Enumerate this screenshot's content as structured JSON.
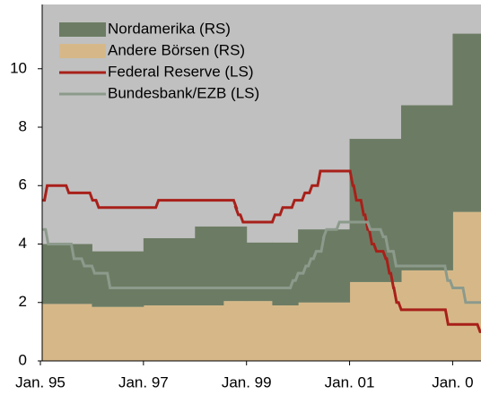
{
  "chart_data": {
    "type": "step_area_line",
    "xlim": [
      1995,
      2003.55
    ],
    "ylim": [
      0,
      12.2
    ],
    "yticks": [
      0,
      2,
      4,
      6,
      8,
      10
    ],
    "xticks": [
      {
        "value": 1995,
        "label": "Jan. 95"
      },
      {
        "value": 1997,
        "label": "Jan. 97"
      },
      {
        "value": 1999,
        "label": "Jan. 99"
      },
      {
        "value": 2001,
        "label": "Jan. 01"
      },
      {
        "value": 2003,
        "label": "Jan. 0"
      }
    ],
    "legend": "top-left",
    "areas": [
      {
        "name": "Andere Börsen (RS)",
        "color": "#d6b888",
        "x": [
          1995,
          1996,
          1997,
          1998,
          1998.55,
          1999,
          1999.5,
          2000,
          2001,
          2002,
          2003
        ],
        "values": [
          1.95,
          1.85,
          1.9,
          1.9,
          2.05,
          2.05,
          1.9,
          2.0,
          2.7,
          3.1,
          5.1
        ]
      },
      {
        "name": "Nordamerika (RS)",
        "color": "#6c7c64",
        "x": [
          1995,
          1996,
          1997,
          1998,
          1998.55,
          1999,
          1999.5,
          2000,
          2001,
          2002,
          2003
        ],
        "values": [
          2.05,
          1.9,
          2.3,
          2.7,
          2.55,
          2.0,
          2.15,
          2.5,
          4.9,
          5.65,
          6.1
        ]
      }
    ],
    "series": [
      {
        "name": "Federal Reserve (LS)",
        "color": "#a8201a",
        "x": [
          1995,
          1995.08,
          1995.5,
          1995.96,
          1996.08,
          1997.24,
          1998.75,
          1998.79,
          1998.88,
          1999.5,
          1999.65,
          1999.88,
          2000.08,
          2000.22,
          2000.38,
          2001.01,
          2001.08,
          2001.22,
          2001.3,
          2001.38,
          2001.47,
          2001.65,
          2001.72,
          2001.8,
          2001.86,
          2001.95,
          2002.86,
          2003.48
        ],
        "values": [
          5.5,
          6.0,
          5.75,
          5.5,
          5.25,
          5.5,
          5.25,
          5.0,
          4.75,
          5.0,
          5.25,
          5.5,
          5.75,
          6.0,
          6.5,
          6.0,
          5.5,
          5.0,
          4.5,
          4.0,
          3.75,
          3.5,
          3.0,
          2.5,
          2.0,
          1.75,
          1.25,
          1.0
        ]
      },
      {
        "name": "Bundesbank/EZB (LS)",
        "color": "#8c9a8c",
        "x": [
          1995,
          1995.1,
          1995.6,
          1995.8,
          1996.0,
          1996.3,
          1999.85,
          1999.95,
          2000.1,
          2000.2,
          2000.3,
          2000.45,
          2000.5,
          2000.75,
          2001.35,
          2001.6,
          2001.7,
          2001.85,
          2002.85,
          2002.95,
          2003.2
        ],
        "values": [
          4.5,
          4.0,
          3.5,
          3.25,
          3.0,
          2.5,
          2.75,
          3.0,
          3.25,
          3.5,
          3.75,
          4.25,
          4.5,
          4.75,
          4.5,
          4.25,
          3.75,
          3.25,
          2.75,
          2.5,
          2.0
        ]
      }
    ]
  }
}
